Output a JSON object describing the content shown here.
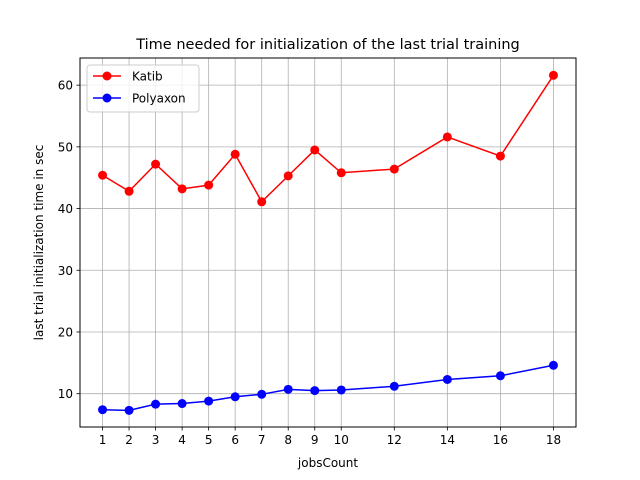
{
  "chart_data": {
    "type": "line",
    "title": "Time needed for initialization of the last trial training",
    "xlabel": "jobsCount",
    "ylabel": "last trial initialization time in sec",
    "x": [
      1,
      2,
      3,
      4,
      5,
      6,
      7,
      8,
      9,
      10,
      12,
      14,
      16,
      18
    ],
    "xticks": [
      1,
      2,
      3,
      4,
      5,
      6,
      7,
      8,
      9,
      10,
      12,
      14,
      16,
      18
    ],
    "yticks": [
      10,
      20,
      30,
      40,
      50,
      60
    ],
    "xlim": [
      0.15,
      18.85
    ],
    "ylim": [
      4.6,
      64.4
    ],
    "grid": true,
    "legend_position": "upper-left",
    "series": [
      {
        "name": "Katib",
        "color": "#ff0000",
        "values": [
          45.4,
          42.8,
          47.2,
          43.2,
          43.8,
          48.8,
          41.1,
          45.3,
          49.5,
          45.8,
          46.4,
          51.6,
          48.5,
          61.6
        ]
      },
      {
        "name": "Polyaxon",
        "color": "#0000ff",
        "values": [
          7.4,
          7.3,
          8.3,
          8.4,
          8.8,
          9.5,
          9.9,
          10.7,
          10.5,
          10.6,
          11.2,
          12.3,
          12.9,
          14.6
        ]
      }
    ]
  }
}
